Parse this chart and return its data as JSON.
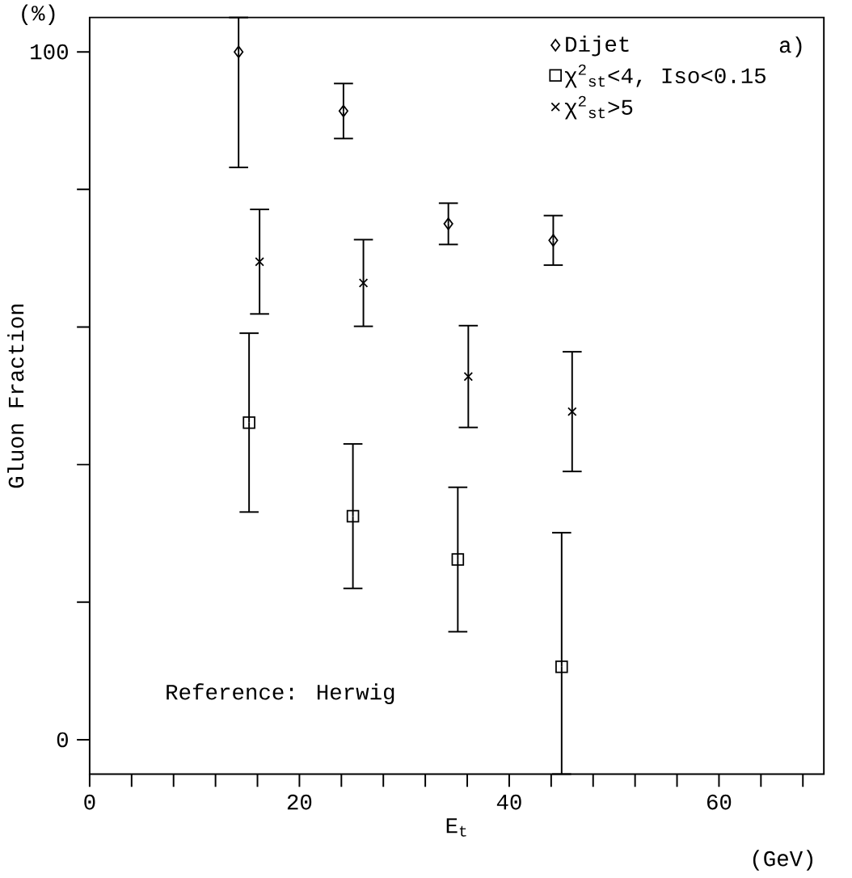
{
  "chart_data": {
    "type": "scatter",
    "xlabel": "E$_{t}$",
    "ylabel": "Gluon Fraction",
    "annotations": [
      "(%)",
      "a)",
      "Reference: Herwig",
      "(GeV)"
    ],
    "xlim": [
      0,
      70
    ],
    "ylim": [
      -5,
      105
    ],
    "xticks": [
      0,
      {
        "value": 4,
        "label": null
      },
      {
        "value": 8,
        "label": null
      },
      {
        "value": 12,
        "label": null
      },
      {
        "value": 16,
        "label": null
      },
      20,
      {
        "value": 24,
        "label": null
      },
      {
        "value": 28,
        "label": null
      },
      {
        "value": 32,
        "label": null
      },
      {
        "value": 36,
        "label": null
      },
      40,
      {
        "value": 44,
        "label": null
      },
      {
        "value": 48,
        "label": null
      },
      {
        "value": 52,
        "label": null
      },
      {
        "value": 56,
        "label": null
      },
      60,
      {
        "value": 64,
        "label": null
      },
      {
        "value": 68,
        "label": null
      }
    ],
    "yticks": [
      0,
      {
        "value": 20,
        "label": null
      },
      {
        "value": 40,
        "label": null
      },
      {
        "value": 60,
        "label": null
      },
      {
        "value": 80,
        "label": null
      },
      100
    ],
    "legend": "top right",
    "grid": false,
    "series": [
      {
        "name": "Dijet",
        "color": "#000000",
        "marker": "diamond",
        "x": [
          14.2,
          24.2,
          34.2,
          44.2
        ],
        "values": [
          100,
          91.4,
          75.0,
          72.6
        ],
        "errors": [
          [
            83.2,
            105
          ],
          4,
          3,
          3.6
        ]
      },
      {
        "name": "χ$^{2}$$_{st}$<4, Iso<0.15",
        "color": "#000000",
        "marker": "square",
        "x": [
          15.2,
          25.1,
          35.1,
          45.0
        ],
        "values": [
          46.1,
          32.5,
          26.2,
          10.6
        ],
        "errors": [
          13,
          10.5,
          10.5,
          [
            -5,
            30.1
          ]
        ]
      },
      {
        "name": "χ$^{2}$$_{st}$>5",
        "color": "#000000",
        "marker": "cross",
        "x": [
          16.2,
          26.1,
          36.1,
          46.0
        ],
        "values": [
          69.5,
          66.4,
          52.8,
          47.7
        ],
        "errors": [
          7.6,
          6.3,
          7.4,
          8.7
        ]
      }
    ]
  }
}
